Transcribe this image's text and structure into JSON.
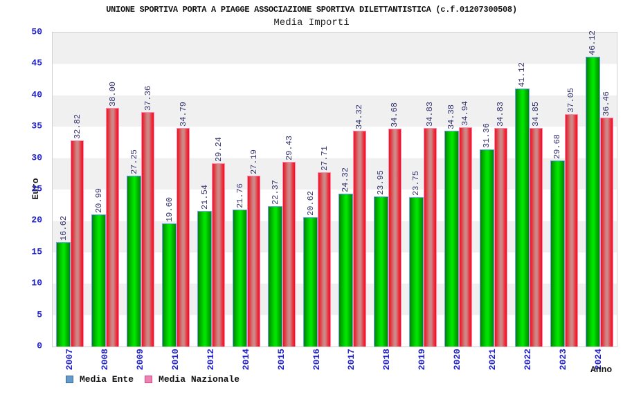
{
  "chart_data": {
    "type": "bar",
    "title": "UNIONE SPORTIVA PORTA A PIAGGE ASSOCIAZIONE SPORTIVA DILETTANTISTICA (c.f.01207300508)",
    "subtitle": "Media Importi",
    "xlabel": "Anno",
    "ylabel": "Euro",
    "ylim": [
      0,
      50
    ],
    "ytick_step": 5,
    "grid": "alternating-horizontal-bands",
    "band_color": "#f0f0f0",
    "plot_border_color": "#cfcfcf",
    "tick_label_color": "#2222cc",
    "value_label_color": "#33336e",
    "legend_position": "bottom-left",
    "categories": [
      "2007",
      "2008",
      "2009",
      "2010",
      "2012",
      "2014",
      "2015",
      "2016",
      "2017",
      "2018",
      "2019",
      "2020",
      "2021",
      "2022",
      "2023",
      "2024"
    ],
    "series": [
      {
        "name": "Media Ente",
        "values": [
          16.62,
          20.99,
          27.25,
          19.6,
          21.54,
          21.76,
          22.37,
          20.62,
          24.32,
          23.95,
          23.75,
          34.38,
          31.36,
          41.12,
          29.68,
          46.12
        ],
        "bar_color_main": "#00e000",
        "bar_color_edge": "#0e7a0e",
        "bar_outline_color": "#6ea3f7",
        "legend_swatch_color": "#6699cc",
        "legend_swatch_border": "#336699"
      },
      {
        "name": "Media Nazionale",
        "values": [
          32.82,
          38.0,
          37.36,
          34.79,
          29.24,
          27.19,
          29.43,
          27.71,
          34.32,
          34.68,
          34.83,
          34.94,
          34.83,
          34.85,
          37.05,
          36.46
        ],
        "bar_color_main": "#cd8a8a",
        "bar_color_edge": "#ee1424",
        "bar_outline_color": "#ff8ab4",
        "legend_swatch_color": "#ee82b0",
        "legend_swatch_border": "#cc4488"
      }
    ]
  }
}
